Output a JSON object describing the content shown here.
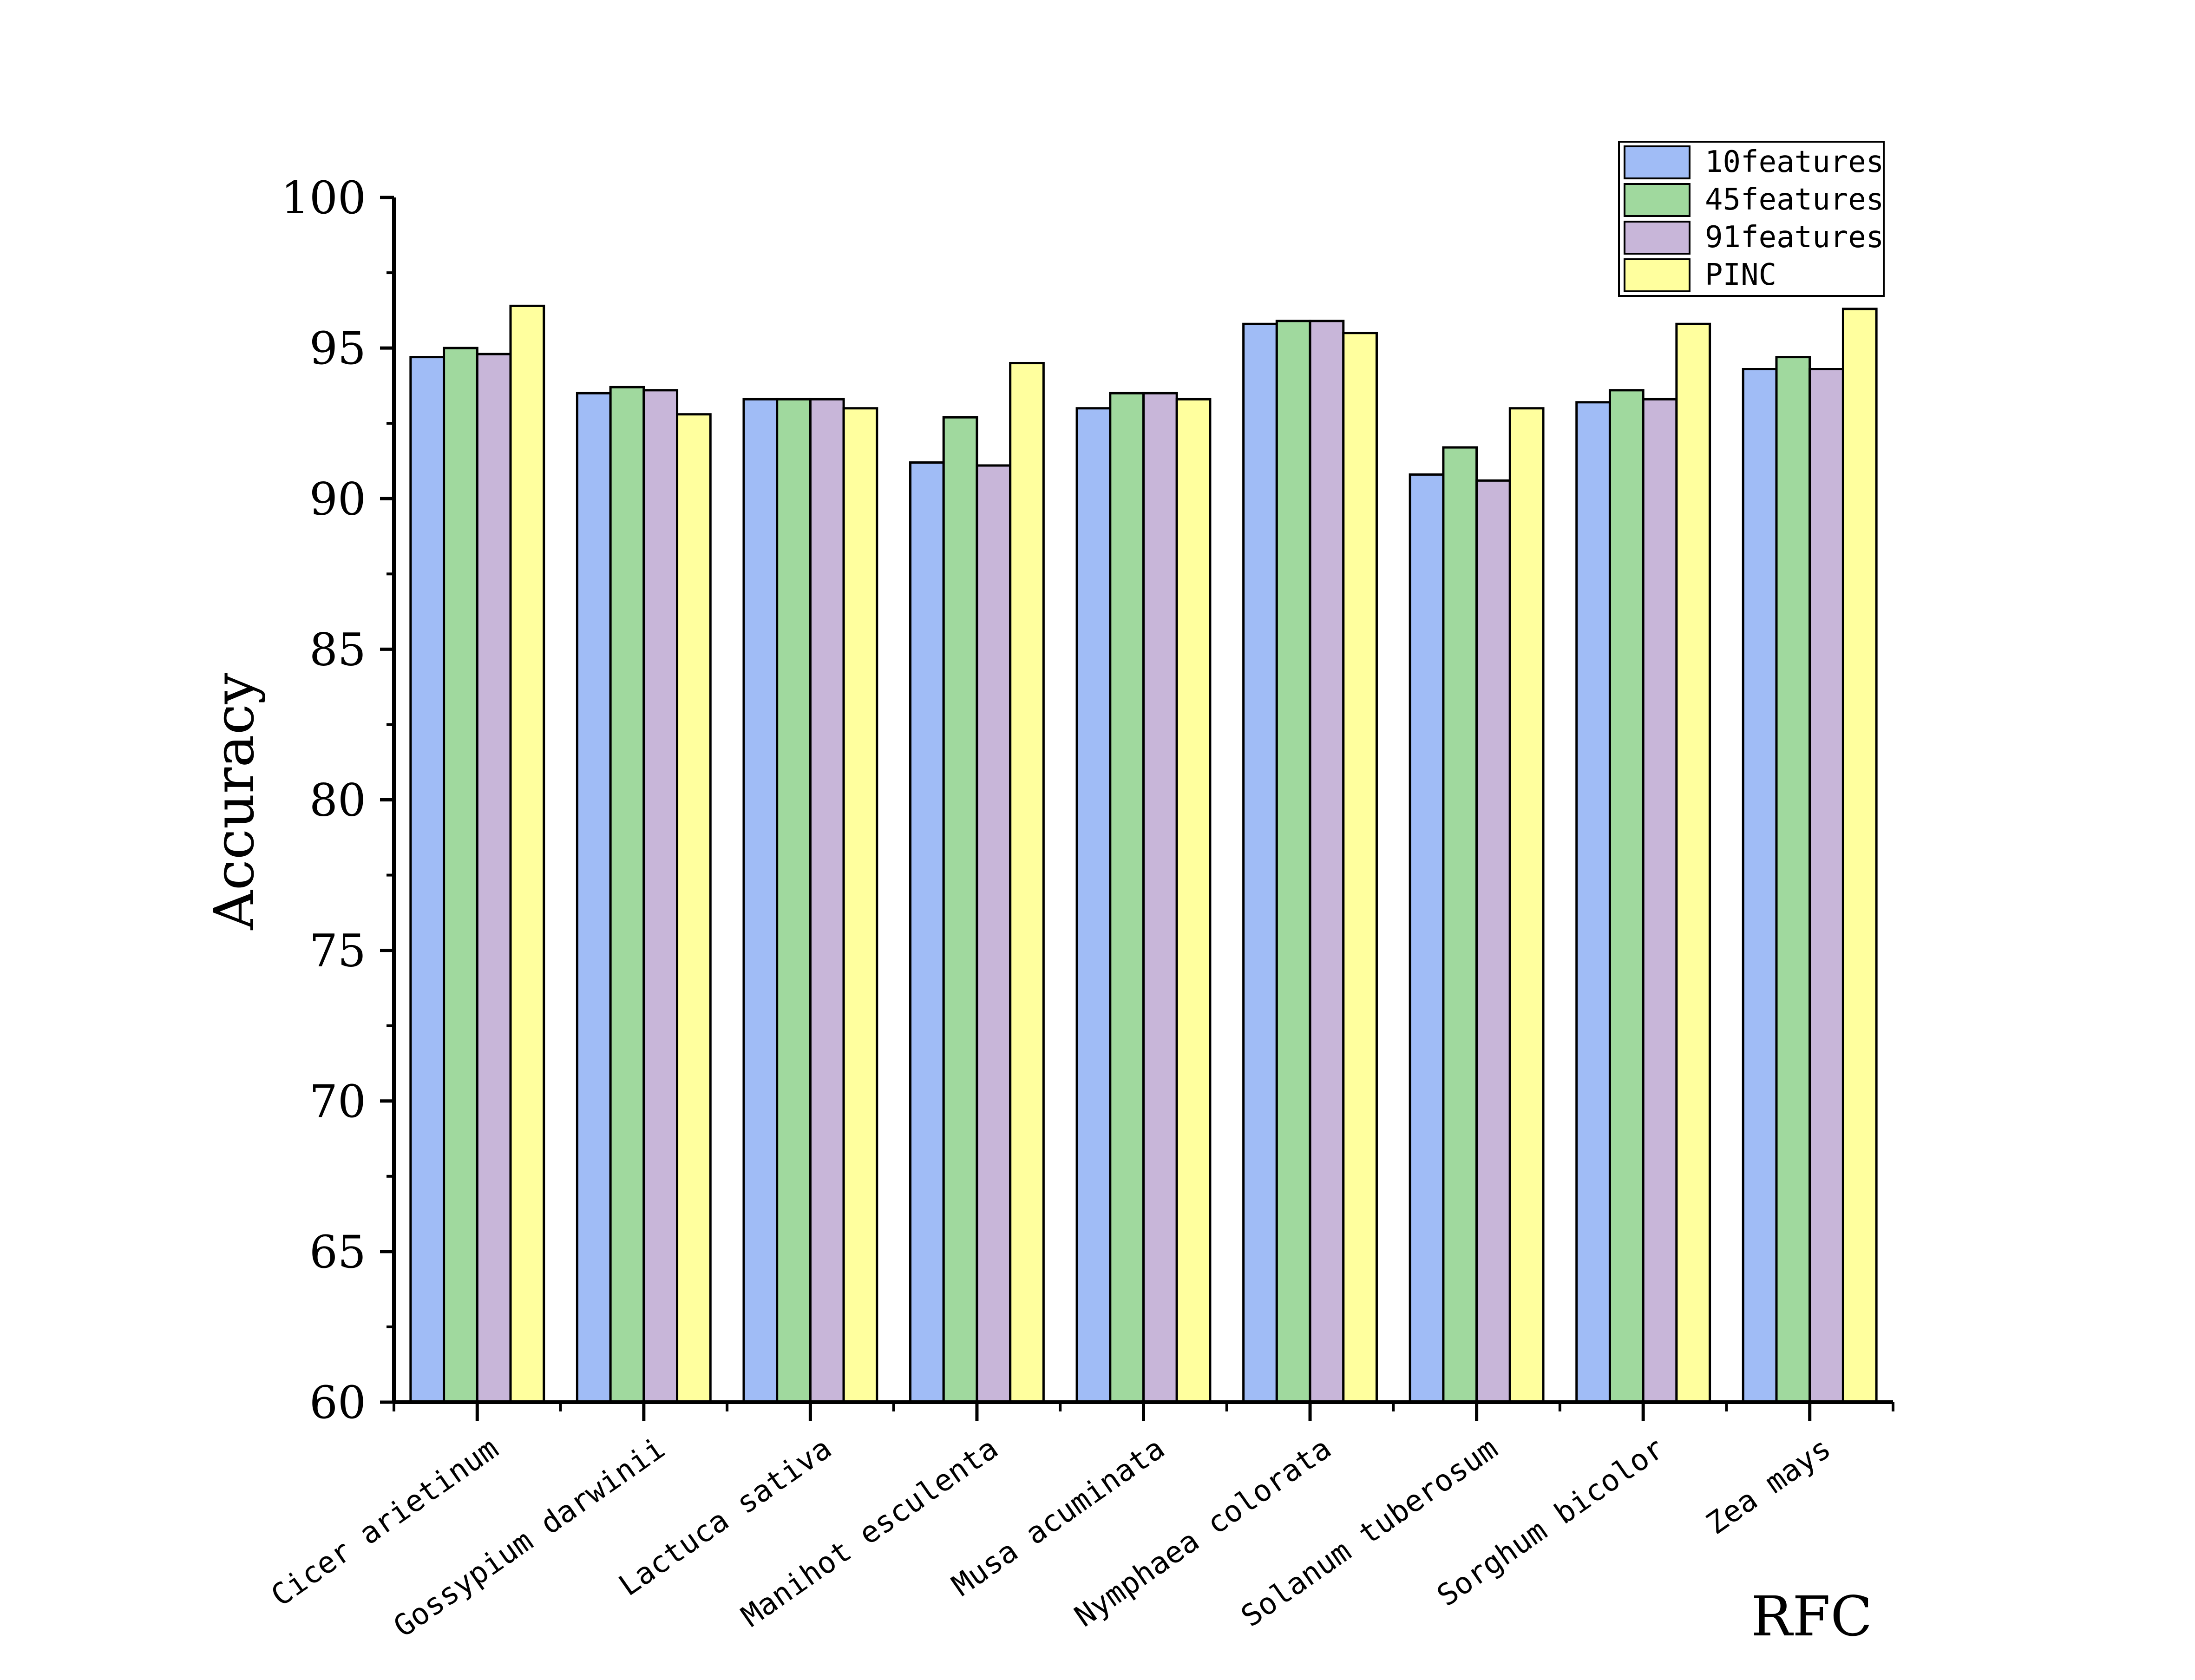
{
  "chart_data": {
    "type": "bar",
    "ylabel": "Accuracy",
    "xlabel": "",
    "corner_label": "RFC",
    "ylim": [
      60,
      100
    ],
    "yticks": [
      60,
      65,
      70,
      75,
      80,
      85,
      90,
      95,
      100
    ],
    "grid": false,
    "legend_position": "top-right",
    "categories": [
      "Cicer arietinum",
      "Gossypium darwinii",
      "Lactuca sativa",
      "Manihot esculenta",
      "Musa acuminata",
      "Nymphaea colorata",
      "Solanum tuberosum",
      "Sorghum bicolor",
      "Zea mays"
    ],
    "series": [
      {
        "name": "10features",
        "color": "#a0bcf6",
        "values": [
          94.7,
          93.5,
          93.3,
          91.2,
          93.0,
          95.8,
          90.8,
          93.2,
          94.3
        ]
      },
      {
        "name": "45features",
        "color": "#a0d99e",
        "values": [
          95.0,
          93.7,
          93.3,
          92.7,
          93.5,
          95.9,
          91.7,
          93.6,
          94.7
        ]
      },
      {
        "name": "91features",
        "color": "#c8b6d9",
        "values": [
          94.8,
          93.6,
          93.3,
          91.1,
          93.5,
          95.9,
          90.6,
          93.3,
          94.3
        ]
      },
      {
        "name": "PINC",
        "color": "#ffff9e",
        "values": [
          96.4,
          92.8,
          93.0,
          94.5,
          93.3,
          95.5,
          93.0,
          95.8,
          96.3
        ]
      }
    ]
  }
}
